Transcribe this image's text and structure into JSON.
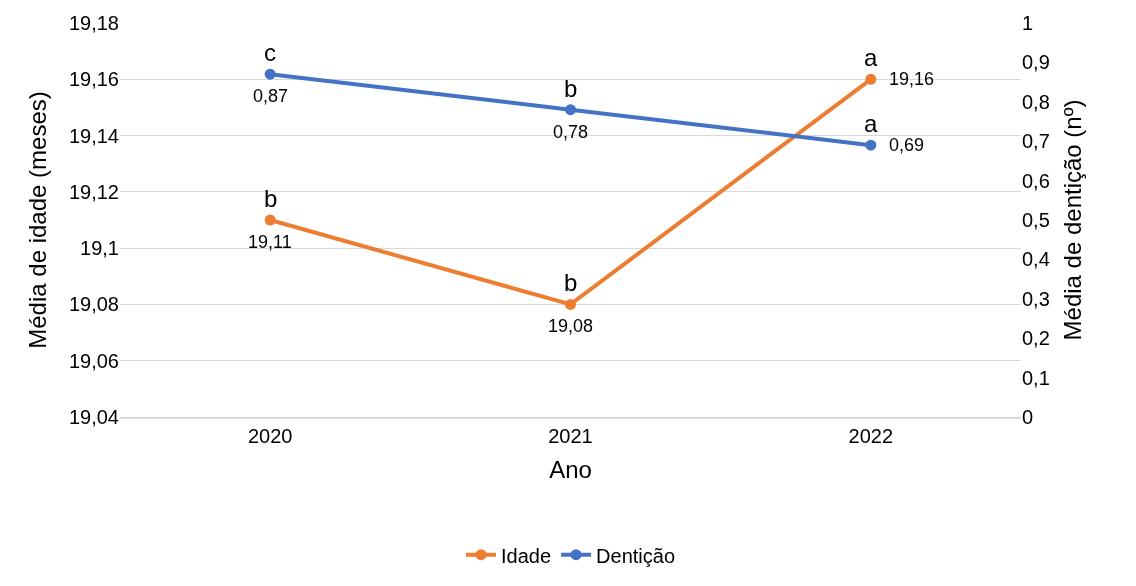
{
  "chart_data": {
    "type": "line",
    "xlabel": "Ano",
    "ylabel": "Média de idade (meses)",
    "y2label": "Média de dentição (nº)",
    "categories": [
      "2020",
      "2021",
      "2022"
    ],
    "series": [
      {
        "name": "Idade",
        "color": "#ed7d31",
        "values": [
          19.11,
          19.08,
          19.16
        ],
        "value_labels": [
          "19,11",
          "19,08",
          "19,16"
        ]
      },
      {
        "name": "Dentição",
        "color": "#4472c4",
        "axis": "y2",
        "values": [
          0.87,
          0.78,
          0.69
        ],
        "value_labels": [
          "0,87",
          "0,78",
          "0,69"
        ]
      }
    ],
    "ylim": [
      19.04,
      19.18
    ],
    "yticks": [
      {
        "value": 19.04,
        "label": "19,04"
      },
      {
        "value": 19.06,
        "label": "19,06"
      },
      {
        "value": 19.08,
        "label": "19,08"
      },
      {
        "value": 19.1,
        "label": "19,1"
      },
      {
        "value": 19.12,
        "label": "19,12"
      },
      {
        "value": 19.14,
        "label": "19,14"
      },
      {
        "value": 19.16,
        "label": "19,16"
      },
      {
        "value": 19.18,
        "label": "19,18"
      }
    ],
    "y2lim": [
      0,
      1
    ],
    "y2ticks": [
      0,
      {
        "value": 0.1,
        "label": "0,1"
      },
      {
        "value": 0.2,
        "label": "0,2"
      },
      {
        "value": 0.3,
        "label": "0,3"
      },
      {
        "value": 0.4,
        "label": "0,4"
      },
      {
        "value": 0.5,
        "label": "0,5"
      },
      {
        "value": 0.6,
        "label": "0,6"
      },
      {
        "value": 0.7,
        "label": "0,7"
      },
      {
        "value": 0.8,
        "label": "0,8"
      },
      {
        "value": 0.9,
        "label": "0,9"
      },
      1
    ],
    "annotations": [
      "b",
      "b",
      "a",
      "c",
      "b",
      "a"
    ],
    "grid": "y",
    "legend": "bottom",
    "marker": "circle",
    "line_style": "solid"
  }
}
